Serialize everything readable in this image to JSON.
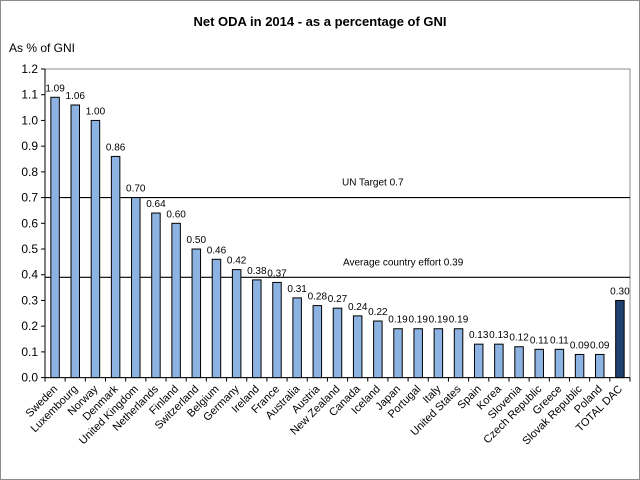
{
  "chart_data": {
    "type": "bar",
    "title": "Net ODA in 2014 - as a percentage of GNI",
    "ylabel": "As % of GNI",
    "xlabel": "",
    "ylim": [
      0,
      1.2
    ],
    "yticks": [
      "0.0",
      "0.1",
      "0.2",
      "0.3",
      "0.4",
      "0.5",
      "0.6",
      "0.7",
      "0.8",
      "0.9",
      "1.0",
      "1.1",
      "1.2"
    ],
    "grid": false,
    "categories": [
      "Sweden",
      "Luxembourg",
      "Norway",
      "Denmark",
      "United Kingdom",
      "Netherlands",
      "Finland",
      "Switzerland",
      "Belgium",
      "Germany",
      "Ireland",
      "France",
      "Australia",
      "Austria",
      "New Zealand",
      "Canada",
      "Iceland",
      "Japan",
      "Portugal",
      "Italy",
      "United States",
      "Spain",
      "Korea",
      "Slovenia",
      "Czech Republic",
      "Greece",
      "Slovak Republic",
      "Poland",
      "TOTAL DAC"
    ],
    "values": [
      1.09,
      1.06,
      1.0,
      0.86,
      0.7,
      0.64,
      0.6,
      0.5,
      0.46,
      0.42,
      0.38,
      0.37,
      0.31,
      0.28,
      0.27,
      0.24,
      0.22,
      0.19,
      0.19,
      0.19,
      0.19,
      0.13,
      0.13,
      0.12,
      0.11,
      0.11,
      0.09,
      0.09,
      0.3
    ],
    "data_labels": [
      "1.09",
      "1.06",
      "1.00",
      "0.86",
      "0.70",
      "0.64",
      "0.60",
      "0.50",
      "0.46",
      "0.42",
      "0.38",
      "0.37",
      "0.31",
      "0.28",
      "0.27",
      "0.24",
      "0.22",
      "0.19",
      "0.19",
      "0.19",
      "0.19",
      "0.13",
      "0.13",
      "0.12",
      "0.11",
      "0.11",
      "0.09",
      "0.09",
      "0.30"
    ],
    "colors": {
      "bar": "#8db3e2",
      "total_bar": "#1f3f6e",
      "outline": "#000000"
    },
    "reference_lines": [
      {
        "value": 0.7,
        "label": "UN Target 0.7"
      },
      {
        "value": 0.39,
        "label": "Average country effort 0.39"
      }
    ]
  }
}
